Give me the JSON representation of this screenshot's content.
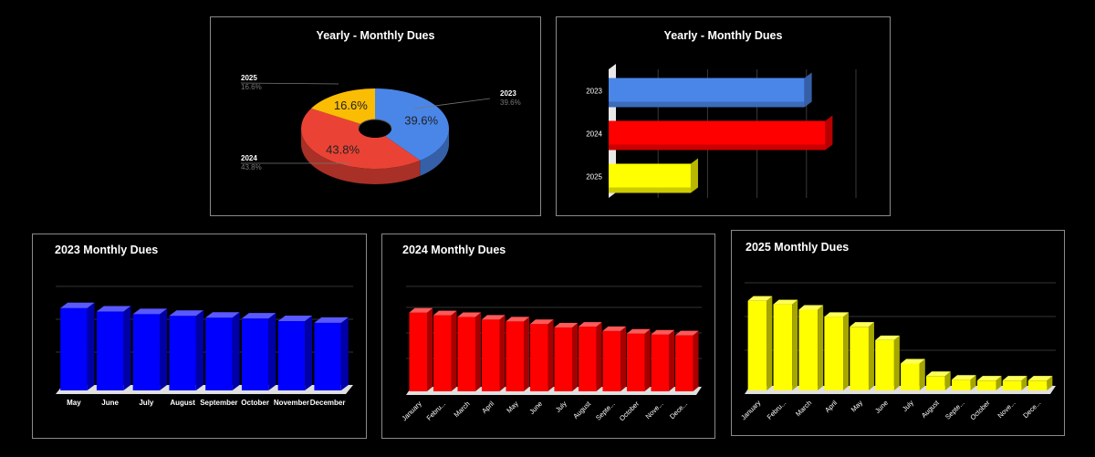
{
  "colors": {
    "background": "#000000",
    "panel_border": "#8a8a8a"
  },
  "chart_data": [
    {
      "type": "pie",
      "title": "Yearly - Monthly Dues",
      "donut": true,
      "three_d": true,
      "slices": [
        {
          "label": "2023",
          "value": 39.6,
          "display": "39.6%",
          "color": "#4a86e8"
        },
        {
          "label": "2024",
          "value": 43.8,
          "display": "43.8%",
          "color": "#ea4335"
        },
        {
          "label": "2025",
          "value": 16.6,
          "display": "16.6%",
          "color": "#fbbc04"
        }
      ]
    },
    {
      "type": "bar",
      "orientation": "horizontal",
      "title": "Yearly - Monthly Dues",
      "three_d": true,
      "categories": [
        "2023",
        "2024",
        "2025"
      ],
      "values": [
        39.6,
        43.8,
        16.6
      ],
      "colors": [
        "#4a86e8",
        "#ff0000",
        "#ffff00"
      ],
      "xlim": [
        0,
        50
      ],
      "grid": true
    },
    {
      "type": "bar",
      "title": "2023 Monthly Dues",
      "three_d": true,
      "color": "#0000ff",
      "categories": [
        "May",
        "June",
        "July",
        "August",
        "September",
        "October",
        "November",
        "December"
      ],
      "values": [
        95,
        91,
        88,
        86,
        84,
        83,
        80,
        78
      ],
      "ylim": [
        0,
        120
      ],
      "grid": true
    },
    {
      "type": "bar",
      "title": "2024 Monthly Dues",
      "three_d": true,
      "color": "#ff0000",
      "categories": [
        "January",
        "Febru...",
        "March",
        "April",
        "May",
        "June",
        "July",
        "August",
        "Septe...",
        "October",
        "Nove...",
        "Dece..."
      ],
      "values": [
        90,
        87,
        85,
        82,
        80,
        77,
        73,
        74,
        69,
        66,
        65,
        64
      ],
      "ylim": [
        0,
        120
      ],
      "grid": true
    },
    {
      "type": "bar",
      "title": "2025 Monthly Dues",
      "three_d": true,
      "color": "#ffff00",
      "categories": [
        "January",
        "Febru...",
        "March",
        "April",
        "May",
        "June",
        "July",
        "August",
        "Septe...",
        "October",
        "Nove...",
        "Dece..."
      ],
      "values": [
        100,
        96,
        90,
        82,
        71,
        56,
        30,
        16,
        12,
        11,
        11,
        11
      ],
      "ylim": [
        0,
        120
      ],
      "grid": true
    }
  ]
}
